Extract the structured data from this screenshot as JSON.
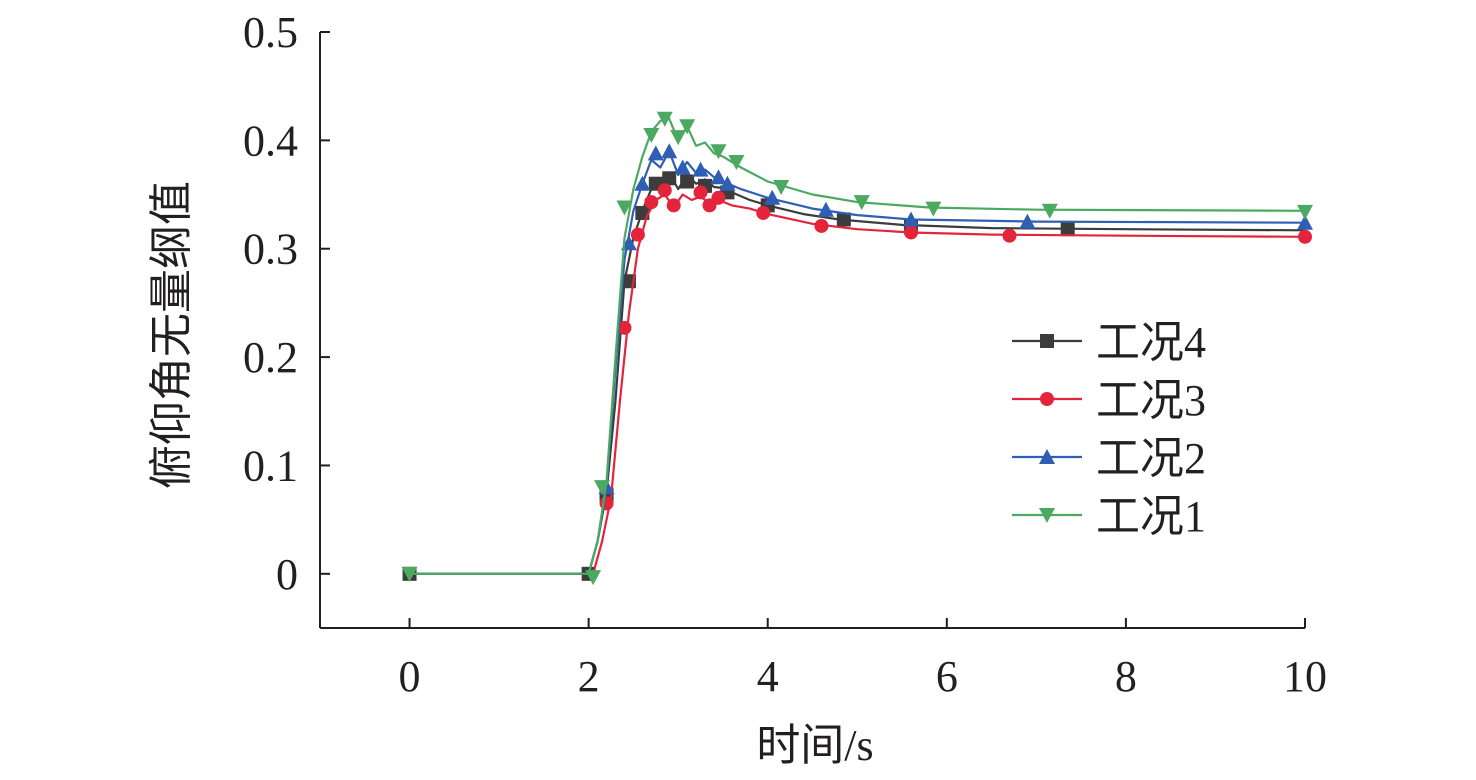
{
  "chart_data": {
    "type": "line",
    "title": "",
    "xlabel": "时间/s",
    "ylabel": "俯仰角无量纲值",
    "xlim": [
      -1,
      10
    ],
    "ylim": [
      -0.05,
      0.5
    ],
    "xticks": [
      0,
      2,
      4,
      6,
      8,
      10
    ],
    "xtick_labels": [
      "0",
      "2",
      "4",
      "6",
      "8",
      "10"
    ],
    "yticks": [
      0,
      0.1,
      0.2,
      0.3,
      0.4,
      0.5
    ],
    "ytick_labels": [
      "0",
      "0.1",
      "0.2",
      "0.3",
      "0.4",
      "0.5"
    ],
    "grid": false,
    "legend_position": "right",
    "series": [
      {
        "name": "工况4",
        "color": "#3c3c3c",
        "marker": "square",
        "points": [
          [
            0,
            0
          ],
          [
            2.0,
            0
          ],
          [
            2.1,
            0.03
          ],
          [
            2.2,
            0.075
          ],
          [
            2.3,
            0.16
          ],
          [
            2.4,
            0.27
          ],
          [
            2.5,
            0.31
          ],
          [
            2.6,
            0.335
          ],
          [
            2.7,
            0.355
          ],
          [
            2.8,
            0.363
          ],
          [
            2.9,
            0.37
          ],
          [
            3.0,
            0.355
          ],
          [
            3.1,
            0.368
          ],
          [
            3.2,
            0.36
          ],
          [
            3.3,
            0.364
          ],
          [
            3.4,
            0.357
          ],
          [
            3.5,
            0.356
          ],
          [
            3.6,
            0.352
          ],
          [
            3.8,
            0.345
          ],
          [
            4.0,
            0.34
          ],
          [
            4.4,
            0.332
          ],
          [
            4.8,
            0.327
          ],
          [
            5.5,
            0.322
          ],
          [
            6.5,
            0.319
          ],
          [
            8.0,
            0.318
          ],
          [
            10.0,
            0.317
          ]
        ],
        "markers": [
          [
            0,
            0
          ],
          [
            2.0,
            0
          ],
          [
            2.2,
            0.073
          ],
          [
            2.45,
            0.27
          ],
          [
            2.6,
            0.333
          ],
          [
            2.75,
            0.36
          ],
          [
            2.9,
            0.365
          ],
          [
            3.1,
            0.362
          ],
          [
            3.3,
            0.358
          ],
          [
            3.55,
            0.352
          ],
          [
            4.0,
            0.34
          ],
          [
            4.85,
            0.327
          ],
          [
            5.6,
            0.321
          ],
          [
            7.35,
            0.318
          ]
        ]
      },
      {
        "name": "工况3",
        "color": "#e4243b",
        "marker": "circle",
        "points": [
          [
            0,
            0
          ],
          [
            2.05,
            0
          ],
          [
            2.15,
            0.03
          ],
          [
            2.25,
            0.07
          ],
          [
            2.35,
            0.16
          ],
          [
            2.45,
            0.24
          ],
          [
            2.55,
            0.3
          ],
          [
            2.65,
            0.33
          ],
          [
            2.75,
            0.345
          ],
          [
            2.85,
            0.35
          ],
          [
            2.95,
            0.338
          ],
          [
            3.05,
            0.35
          ],
          [
            3.15,
            0.345
          ],
          [
            3.25,
            0.348
          ],
          [
            3.35,
            0.342
          ],
          [
            3.45,
            0.345
          ],
          [
            3.6,
            0.34
          ],
          [
            3.8,
            0.337
          ],
          [
            4.0,
            0.332
          ],
          [
            4.5,
            0.323
          ],
          [
            5.0,
            0.318
          ],
          [
            5.6,
            0.315
          ],
          [
            6.5,
            0.313
          ],
          [
            8.0,
            0.312
          ],
          [
            10.0,
            0.311
          ]
        ],
        "markers": [
          [
            2.2,
            0.065
          ],
          [
            2.4,
            0.227
          ],
          [
            2.55,
            0.313
          ],
          [
            2.7,
            0.343
          ],
          [
            2.85,
            0.354
          ],
          [
            2.95,
            0.34
          ],
          [
            3.25,
            0.352
          ],
          [
            3.35,
            0.34
          ],
          [
            3.45,
            0.347
          ],
          [
            3.95,
            0.333
          ],
          [
            4.6,
            0.321
          ],
          [
            5.6,
            0.315
          ],
          [
            6.7,
            0.312
          ],
          [
            10.0,
            0.311
          ]
        ]
      },
      {
        "name": "工况2",
        "color": "#2f5fb4",
        "marker": "triangle-up",
        "points": [
          [
            0,
            0
          ],
          [
            2.0,
            0
          ],
          [
            2.1,
            0.03
          ],
          [
            2.2,
            0.08
          ],
          [
            2.3,
            0.19
          ],
          [
            2.4,
            0.29
          ],
          [
            2.5,
            0.335
          ],
          [
            2.6,
            0.36
          ],
          [
            2.7,
            0.382
          ],
          [
            2.8,
            0.375
          ],
          [
            2.9,
            0.39
          ],
          [
            3.0,
            0.368
          ],
          [
            3.1,
            0.38
          ],
          [
            3.2,
            0.37
          ],
          [
            3.3,
            0.373
          ],
          [
            3.4,
            0.366
          ],
          [
            3.5,
            0.362
          ],
          [
            3.7,
            0.355
          ],
          [
            4.0,
            0.347
          ],
          [
            4.5,
            0.337
          ],
          [
            5.0,
            0.331
          ],
          [
            5.6,
            0.327
          ],
          [
            7.0,
            0.325
          ],
          [
            10.0,
            0.324
          ]
        ],
        "markers": [
          [
            2.2,
            0.08
          ],
          [
            2.45,
            0.305
          ],
          [
            2.6,
            0.36
          ],
          [
            2.75,
            0.388
          ],
          [
            2.9,
            0.39
          ],
          [
            3.05,
            0.375
          ],
          [
            3.25,
            0.373
          ],
          [
            3.45,
            0.366
          ],
          [
            3.55,
            0.36
          ],
          [
            4.05,
            0.347
          ],
          [
            4.65,
            0.336
          ],
          [
            5.6,
            0.327
          ],
          [
            6.9,
            0.325
          ],
          [
            10.0,
            0.324
          ]
        ]
      },
      {
        "name": "工况1",
        "color": "#4ca962",
        "marker": "triangle-down",
        "points": [
          [
            0,
            0
          ],
          [
            2.0,
            0
          ],
          [
            2.1,
            0.03
          ],
          [
            2.2,
            0.085
          ],
          [
            2.3,
            0.2
          ],
          [
            2.4,
            0.31
          ],
          [
            2.5,
            0.355
          ],
          [
            2.6,
            0.385
          ],
          [
            2.7,
            0.408
          ],
          [
            2.8,
            0.418
          ],
          [
            2.9,
            0.42
          ],
          [
            3.0,
            0.4
          ],
          [
            3.1,
            0.413
          ],
          [
            3.2,
            0.395
          ],
          [
            3.3,
            0.398
          ],
          [
            3.4,
            0.388
          ],
          [
            3.5,
            0.385
          ],
          [
            3.7,
            0.375
          ],
          [
            4.0,
            0.362
          ],
          [
            4.5,
            0.35
          ],
          [
            5.0,
            0.343
          ],
          [
            5.8,
            0.338
          ],
          [
            7.0,
            0.336
          ],
          [
            10.0,
            0.335
          ]
        ],
        "markers": [
          [
            0,
            0
          ],
          [
            2.05,
            -0.003
          ],
          [
            2.15,
            0.08
          ],
          [
            2.4,
            0.338
          ],
          [
            2.7,
            0.405
          ],
          [
            2.85,
            0.42
          ],
          [
            3.0,
            0.403
          ],
          [
            3.1,
            0.413
          ],
          [
            3.45,
            0.39
          ],
          [
            3.65,
            0.38
          ],
          [
            4.15,
            0.357
          ],
          [
            5.05,
            0.343
          ],
          [
            5.85,
            0.337
          ],
          [
            7.15,
            0.335
          ],
          [
            10.0,
            0.334
          ]
        ]
      }
    ]
  }
}
